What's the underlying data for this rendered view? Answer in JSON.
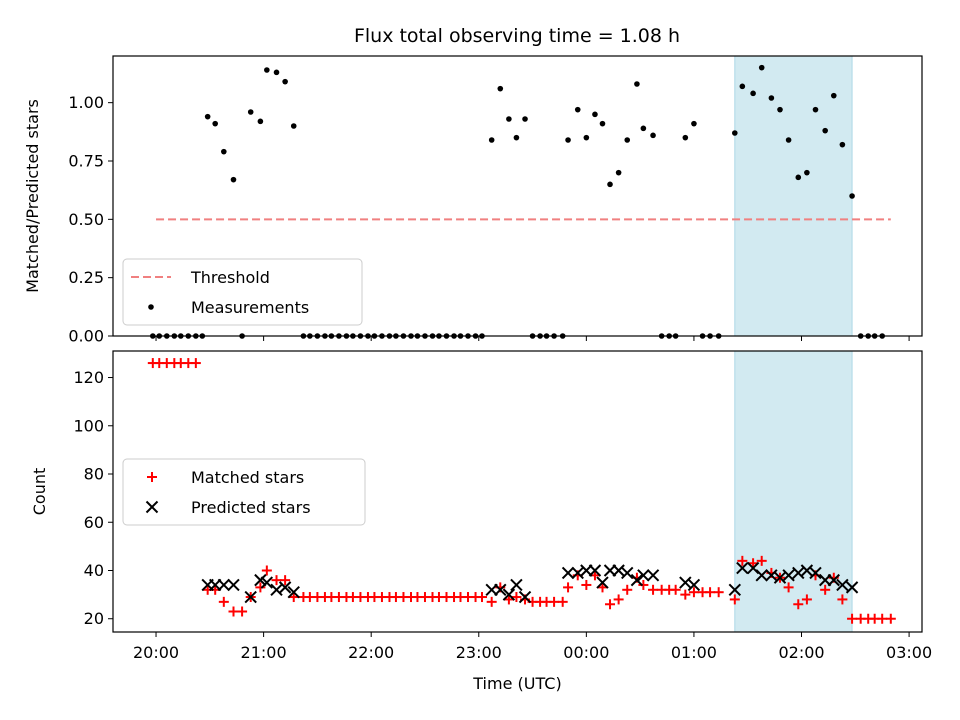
{
  "chart_data": {
    "type": "scatter",
    "title": "Flux total observing time = 1.08 h",
    "xlabel": "Time (UTC)",
    "x_ticks": [
      "20:00",
      "21:00",
      "22:00",
      "23:00",
      "00:00",
      "01:00",
      "02:00",
      "03:00"
    ],
    "x_range_hours": [
      19.6,
      27.12
    ],
    "highlight_span_hours": [
      25.38,
      26.47
    ],
    "highlight_color": "#add8e6",
    "top_panel": {
      "ylabel": "Matched/Predicted stars",
      "ylim": [
        0,
        1.2
      ],
      "y_ticks": [
        "0.00",
        "0.25",
        "0.50",
        "0.75",
        "1.00"
      ],
      "threshold": {
        "name": "Threshold",
        "value": 0.5,
        "x_start": 20.0,
        "x_end": 26.83,
        "color": "#f08080"
      },
      "measurements_name": "Measurements",
      "legend_position": "lower-left",
      "measurements": [
        [
          19.97,
          0
        ],
        [
          20.03,
          0
        ],
        [
          20.1,
          0
        ],
        [
          20.17,
          0
        ],
        [
          20.23,
          0
        ],
        [
          20.3,
          0
        ],
        [
          20.37,
          0
        ],
        [
          20.43,
          0
        ],
        [
          20.48,
          0.94
        ],
        [
          20.55,
          0.91
        ],
        [
          20.63,
          0.79
        ],
        [
          20.72,
          0.67
        ],
        [
          20.8,
          0
        ],
        [
          20.88,
          0.96
        ],
        [
          20.97,
          0.92
        ],
        [
          21.03,
          1.14
        ],
        [
          21.12,
          1.13
        ],
        [
          21.2,
          1.09
        ],
        [
          21.28,
          0.9
        ],
        [
          21.37,
          0
        ],
        [
          21.43,
          0
        ],
        [
          21.5,
          0
        ],
        [
          21.57,
          0
        ],
        [
          21.63,
          0
        ],
        [
          21.7,
          0
        ],
        [
          21.77,
          0
        ],
        [
          21.83,
          0
        ],
        [
          21.9,
          0
        ],
        [
          21.97,
          0
        ],
        [
          22.03,
          0
        ],
        [
          22.1,
          0
        ],
        [
          22.17,
          0
        ],
        [
          22.23,
          0
        ],
        [
          22.3,
          0
        ],
        [
          22.37,
          0
        ],
        [
          22.43,
          0
        ],
        [
          22.5,
          0
        ],
        [
          22.57,
          0
        ],
        [
          22.63,
          0
        ],
        [
          22.7,
          0
        ],
        [
          22.77,
          0
        ],
        [
          22.83,
          0
        ],
        [
          22.9,
          0
        ],
        [
          22.97,
          0
        ],
        [
          23.03,
          0
        ],
        [
          23.12,
          0.84
        ],
        [
          23.2,
          1.06
        ],
        [
          23.28,
          0.93
        ],
        [
          23.35,
          0.85
        ],
        [
          23.43,
          0.93
        ],
        [
          23.5,
          0
        ],
        [
          23.57,
          0
        ],
        [
          23.63,
          0
        ],
        [
          23.7,
          0
        ],
        [
          23.78,
          0
        ],
        [
          23.83,
          0.84
        ],
        [
          23.92,
          0.97
        ],
        [
          24.0,
          0.85
        ],
        [
          24.08,
          0.95
        ],
        [
          24.15,
          0.91
        ],
        [
          24.22,
          0.65
        ],
        [
          24.3,
          0.7
        ],
        [
          24.38,
          0.84
        ],
        [
          24.47,
          1.08
        ],
        [
          24.53,
          0.89
        ],
        [
          24.62,
          0.86
        ],
        [
          24.7,
          0
        ],
        [
          24.77,
          0
        ],
        [
          24.83,
          0
        ],
        [
          24.92,
          0.85
        ],
        [
          25.0,
          0.91
        ],
        [
          25.08,
          0
        ],
        [
          25.15,
          0
        ],
        [
          25.23,
          0
        ],
        [
          25.38,
          0.87
        ],
        [
          25.45,
          1.07
        ],
        [
          25.55,
          1.04
        ],
        [
          25.63,
          1.15
        ],
        [
          25.72,
          1.02
        ],
        [
          25.8,
          0.97
        ],
        [
          25.88,
          0.84
        ],
        [
          25.97,
          0.68
        ],
        [
          26.05,
          0.7
        ],
        [
          26.13,
          0.97
        ],
        [
          26.22,
          0.88
        ],
        [
          26.3,
          1.03
        ],
        [
          26.38,
          0.82
        ],
        [
          26.47,
          0.6
        ],
        [
          26.55,
          0
        ],
        [
          26.62,
          0
        ],
        [
          26.68,
          0
        ],
        [
          26.75,
          0
        ]
      ]
    },
    "bottom_panel": {
      "ylabel": "Count",
      "ylim": [
        14.5,
        131
      ],
      "y_ticks": [
        "20",
        "40",
        "60",
        "80",
        "100",
        "120"
      ],
      "legend_position": "center-left",
      "series": [
        {
          "name": "Matched stars",
          "marker": "plus",
          "color": "#ff0000",
          "points": [
            [
              19.97,
              126
            ],
            [
              20.03,
              126
            ],
            [
              20.1,
              126
            ],
            [
              20.17,
              126
            ],
            [
              20.23,
              126
            ],
            [
              20.3,
              126
            ],
            [
              20.37,
              126
            ],
            [
              20.48,
              32
            ],
            [
              20.55,
              32
            ],
            [
              20.63,
              27
            ],
            [
              20.72,
              23
            ],
            [
              20.8,
              23
            ],
            [
              20.88,
              29
            ],
            [
              20.97,
              33
            ],
            [
              21.03,
              40
            ],
            [
              21.12,
              36
            ],
            [
              21.2,
              36
            ],
            [
              21.28,
              29
            ],
            [
              21.37,
              29
            ],
            [
              21.43,
              29
            ],
            [
              21.5,
              29
            ],
            [
              21.57,
              29
            ],
            [
              21.63,
              29
            ],
            [
              21.7,
              29
            ],
            [
              21.77,
              29
            ],
            [
              21.83,
              29
            ],
            [
              21.9,
              29
            ],
            [
              21.97,
              29
            ],
            [
              22.03,
              29
            ],
            [
              22.1,
              29
            ],
            [
              22.17,
              29
            ],
            [
              22.23,
              29
            ],
            [
              22.3,
              29
            ],
            [
              22.37,
              29
            ],
            [
              22.43,
              29
            ],
            [
              22.5,
              29
            ],
            [
              22.57,
              29
            ],
            [
              22.63,
              29
            ],
            [
              22.7,
              29
            ],
            [
              22.77,
              29
            ],
            [
              22.83,
              29
            ],
            [
              22.9,
              29
            ],
            [
              22.97,
              29
            ],
            [
              23.03,
              29
            ],
            [
              23.12,
              27
            ],
            [
              23.2,
              33
            ],
            [
              23.28,
              28
            ],
            [
              23.35,
              29
            ],
            [
              23.43,
              28
            ],
            [
              23.5,
              27
            ],
            [
              23.57,
              27
            ],
            [
              23.63,
              27
            ],
            [
              23.7,
              27
            ],
            [
              23.78,
              27
            ],
            [
              23.83,
              33
            ],
            [
              23.92,
              38
            ],
            [
              24.0,
              34
            ],
            [
              24.08,
              38
            ],
            [
              24.15,
              33
            ],
            [
              24.22,
              26
            ],
            [
              24.3,
              28
            ],
            [
              24.38,
              32
            ],
            [
              24.47,
              37
            ],
            [
              24.53,
              34
            ],
            [
              24.62,
              32
            ],
            [
              24.7,
              32
            ],
            [
              24.77,
              32
            ],
            [
              24.83,
              32
            ],
            [
              24.92,
              30
            ],
            [
              25.0,
              31
            ],
            [
              25.08,
              31
            ],
            [
              25.15,
              31
            ],
            [
              25.23,
              31
            ],
            [
              25.38,
              28
            ],
            [
              25.45,
              44
            ],
            [
              25.55,
              43
            ],
            [
              25.63,
              44
            ],
            [
              25.72,
              39
            ],
            [
              25.8,
              37
            ],
            [
              25.88,
              33
            ],
            [
              25.97,
              26
            ],
            [
              26.05,
              28
            ],
            [
              26.13,
              38
            ],
            [
              26.22,
              32
            ],
            [
              26.3,
              37
            ],
            [
              26.38,
              28
            ],
            [
              26.47,
              20
            ],
            [
              26.55,
              20
            ],
            [
              26.62,
              20
            ],
            [
              26.68,
              20
            ],
            [
              26.75,
              20
            ],
            [
              26.83,
              20
            ]
          ]
        },
        {
          "name": "Predicted stars",
          "marker": "x",
          "color": "#000000",
          "points": [
            [
              20.48,
              34
            ],
            [
              20.55,
              34
            ],
            [
              20.63,
              34
            ],
            [
              20.72,
              34
            ],
            [
              20.88,
              29
            ],
            [
              20.97,
              36
            ],
            [
              21.03,
              35
            ],
            [
              21.12,
              32
            ],
            [
              21.2,
              33
            ],
            [
              21.28,
              31
            ],
            [
              23.12,
              32
            ],
            [
              23.2,
              32
            ],
            [
              23.28,
              30
            ],
            [
              23.35,
              34
            ],
            [
              23.43,
              29
            ],
            [
              23.83,
              39
            ],
            [
              23.92,
              39
            ],
            [
              24.0,
              40
            ],
            [
              24.08,
              40
            ],
            [
              24.15,
              35
            ],
            [
              24.22,
              40
            ],
            [
              24.3,
              40
            ],
            [
              24.38,
              39
            ],
            [
              24.47,
              36
            ],
            [
              24.53,
              38
            ],
            [
              24.62,
              38
            ],
            [
              24.92,
              35
            ],
            [
              25.0,
              34
            ],
            [
              25.38,
              32
            ],
            [
              25.45,
              41
            ],
            [
              25.55,
              41
            ],
            [
              25.63,
              38
            ],
            [
              25.72,
              38
            ],
            [
              25.8,
              37
            ],
            [
              25.88,
              38
            ],
            [
              25.97,
              39
            ],
            [
              26.05,
              40
            ],
            [
              26.13,
              39
            ],
            [
              26.22,
              36
            ],
            [
              26.3,
              36
            ],
            [
              26.38,
              34
            ],
            [
              26.47,
              33
            ]
          ]
        }
      ]
    }
  }
}
